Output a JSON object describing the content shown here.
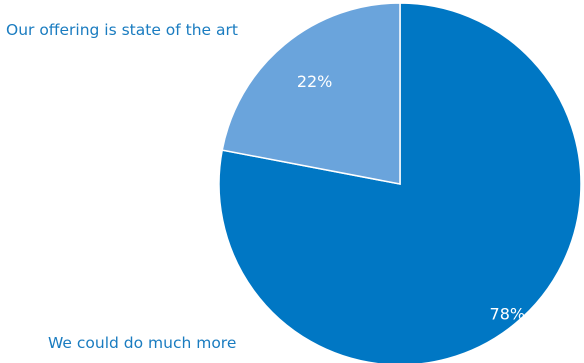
{
  "chart_data": {
    "type": "pie",
    "title": "",
    "slices": [
      {
        "label": "We could do much more",
        "value": 78,
        "value_label": "78%",
        "color": "#0077c4"
      },
      {
        "label": "Our offering is state of the art",
        "value": 22,
        "value_label": "22%",
        "color": "#6aa4dc"
      }
    ],
    "start_angle_deg": 0,
    "direction": "clockwise",
    "slice_border_color": "#ffffff",
    "data_label_color": "#ffffff",
    "category_label_color": "#1a7cc0"
  }
}
